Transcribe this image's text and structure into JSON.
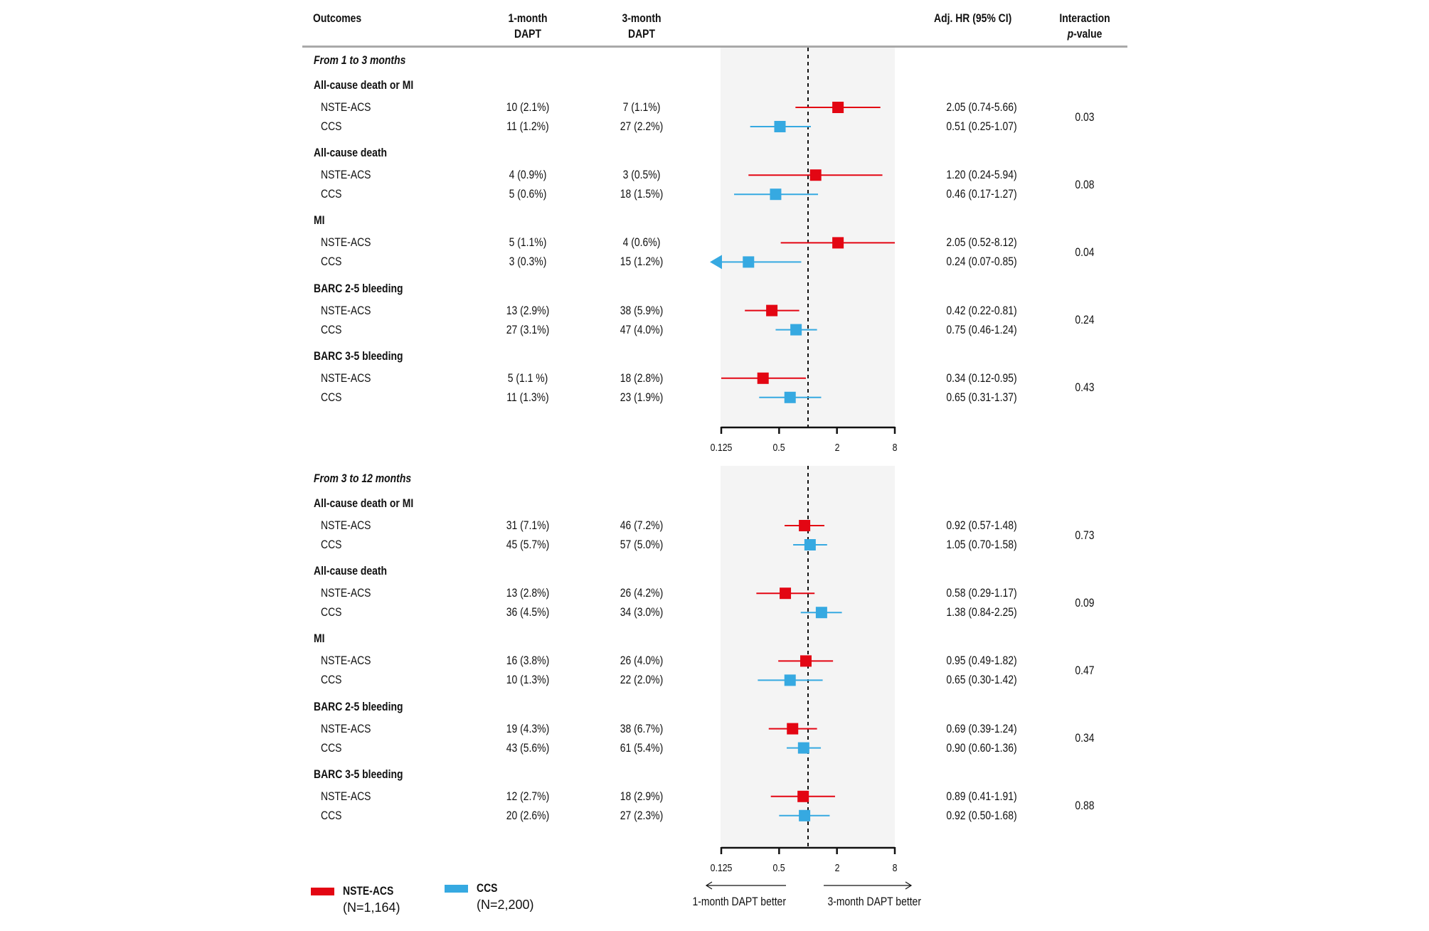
{
  "headers": {
    "outcomes": "Outcomes",
    "col1_line1": "1-month",
    "col1_line2": "DAPT",
    "col2_line1": "3-month",
    "col2_line2": "DAPT",
    "hr": "Adj. HR (95% CI)",
    "p_line1": "Interaction",
    "p_italic": "p",
    "p_rest": "-value"
  },
  "legend": {
    "nste_label": "NSTE-ACS",
    "nste_n": "(N=1,164)",
    "ccs_label": "CCS",
    "ccs_n": "(N=2,200)"
  },
  "colors": {
    "nste": "#E30613",
    "ccs": "#36A9E1",
    "band": "#f4f4f4"
  },
  "axis": {
    "ticks": [
      "0.125",
      "0.5",
      "2",
      "8"
    ],
    "left_caption": "1-month DAPT better",
    "right_caption": "3-month DAPT better"
  },
  "chart_data": {
    "type": "forest",
    "xscale": "log2",
    "xlim": [
      0.125,
      8
    ],
    "reference_line": 1,
    "xticks": [
      0.125,
      0.5,
      2,
      8
    ],
    "series": [
      {
        "name": "NSTE-ACS",
        "n": "1,164",
        "color": "#E30613"
      },
      {
        "name": "CCS",
        "n": "2,200",
        "color": "#36A9E1"
      }
    ],
    "sections": [
      {
        "title": "From 1 to 3 months",
        "groups": [
          {
            "outcome": "All-cause death or MI",
            "p": "0.03",
            "rows": [
              {
                "subgroup": "NSTE-ACS",
                "m1": "10 (2.1%)",
                "m3": "7 (1.1%)",
                "hr": 2.05,
                "lo": 0.74,
                "hi": 5.66,
                "label": "2.05 (0.74-5.66)"
              },
              {
                "subgroup": "CCS",
                "m1": "11 (1.2%)",
                "m3": "27 (2.2%)",
                "hr": 0.51,
                "lo": 0.25,
                "hi": 1.07,
                "label": "0.51 (0.25-1.07)"
              }
            ]
          },
          {
            "outcome": "All-cause death",
            "p": "0.08",
            "rows": [
              {
                "subgroup": "NSTE-ACS",
                "m1": "4 (0.9%)",
                "m3": "3 (0.5%)",
                "hr": 1.2,
                "lo": 0.24,
                "hi": 5.94,
                "label": "1.20 (0.24-5.94)"
              },
              {
                "subgroup": "CCS",
                "m1": "5 (0.6%)",
                "m3": "18 (1.5%)",
                "hr": 0.46,
                "lo": 0.17,
                "hi": 1.27,
                "label": "0.46 (0.17-1.27)"
              }
            ]
          },
          {
            "outcome": "MI",
            "p": "0.04",
            "rows": [
              {
                "subgroup": "NSTE-ACS",
                "m1": "5 (1.1%)",
                "m3": "4 (0.6%)",
                "hr": 2.05,
                "lo": 0.52,
                "hi": 8.12,
                "label": "2.05 (0.52-8.12)"
              },
              {
                "subgroup": "CCS",
                "m1": "3 (0.3%)",
                "m3": "15 (1.2%)",
                "hr": 0.24,
                "lo": 0.07,
                "hi": 0.85,
                "label": "0.24 (0.07-0.85)",
                "truncated_left": true
              }
            ]
          },
          {
            "outcome": "BARC 2-5 bleeding",
            "p": "0.24",
            "rows": [
              {
                "subgroup": "NSTE-ACS",
                "m1": "13 (2.9%)",
                "m3": "38 (5.9%)",
                "hr": 0.42,
                "lo": 0.22,
                "hi": 0.81,
                "label": "0.42 (0.22-0.81)"
              },
              {
                "subgroup": "CCS",
                "m1": "27 (3.1%)",
                "m3": "47 (4.0%)",
                "hr": 0.75,
                "lo": 0.46,
                "hi": 1.24,
                "label": "0.75 (0.46-1.24)"
              }
            ]
          },
          {
            "outcome": "BARC 3-5 bleeding",
            "p": "0.43",
            "rows": [
              {
                "subgroup": "NSTE-ACS",
                "m1": "5 (1.1 %)",
                "m3": "18 (2.8%)",
                "hr": 0.34,
                "lo": 0.12,
                "hi": 0.95,
                "label": "0.34 (0.12-0.95)"
              },
              {
                "subgroup": "CCS",
                "m1": "11 (1.3%)",
                "m3": "23 (1.9%)",
                "hr": 0.65,
                "lo": 0.31,
                "hi": 1.37,
                "label": "0.65 (0.31-1.37)"
              }
            ]
          }
        ]
      },
      {
        "title": "From 3 to 12 months",
        "groups": [
          {
            "outcome": "All-cause death or MI",
            "p": "0.73",
            "rows": [
              {
                "subgroup": "NSTE-ACS",
                "m1": "31 (7.1%)",
                "m3": "46 (7.2%)",
                "hr": 0.92,
                "lo": 0.57,
                "hi": 1.48,
                "label": "0.92 (0.57-1.48)"
              },
              {
                "subgroup": "CCS",
                "m1": "45 (5.7%)",
                "m3": "57 (5.0%)",
                "hr": 1.05,
                "lo": 0.7,
                "hi": 1.58,
                "label": "1.05 (0.70-1.58)"
              }
            ]
          },
          {
            "outcome": "All-cause death",
            "p": "0.09",
            "rows": [
              {
                "subgroup": "NSTE-ACS",
                "m1": "13 (2.8%)",
                "m3": "26 (4.2%)",
                "hr": 0.58,
                "lo": 0.29,
                "hi": 1.17,
                "label": "0.58 (0.29-1.17)"
              },
              {
                "subgroup": "CCS",
                "m1": "36 (4.5%)",
                "m3": "34 (3.0%)",
                "hr": 1.38,
                "lo": 0.84,
                "hi": 2.25,
                "label": "1.38 (0.84-2.25)"
              }
            ]
          },
          {
            "outcome": "MI",
            "p": "0.47",
            "rows": [
              {
                "subgroup": "NSTE-ACS",
                "m1": "16 (3.8%)",
                "m3": "26 (4.0%)",
                "hr": 0.95,
                "lo": 0.49,
                "hi": 1.82,
                "label": "0.95 (0.49-1.82)"
              },
              {
                "subgroup": "CCS",
                "m1": "10 (1.3%)",
                "m3": "22 (2.0%)",
                "hr": 0.65,
                "lo": 0.3,
                "hi": 1.42,
                "label": "0.65 (0.30-1.42)"
              }
            ]
          },
          {
            "outcome": "BARC 2-5 bleeding",
            "p": "0.34",
            "rows": [
              {
                "subgroup": "NSTE-ACS",
                "m1": "19 (4.3%)",
                "m3": "38 (6.7%)",
                "hr": 0.69,
                "lo": 0.39,
                "hi": 1.24,
                "label": "0.69 (0.39-1.24)"
              },
              {
                "subgroup": "CCS",
                "m1": "43 (5.6%)",
                "m3": "61 (5.4%)",
                "hr": 0.9,
                "lo": 0.6,
                "hi": 1.36,
                "label": "0.90 (0.60-1.36)"
              }
            ]
          },
          {
            "outcome": "BARC 3-5 bleeding",
            "p": "0.88",
            "rows": [
              {
                "subgroup": "NSTE-ACS",
                "m1": "12 (2.7%)",
                "m3": "18 (2.9%)",
                "hr": 0.89,
                "lo": 0.41,
                "hi": 1.91,
                "label": "0.89 (0.41-1.91)"
              },
              {
                "subgroup": "CCS",
                "m1": "20 (2.6%)",
                "m3": "27 (2.3%)",
                "hr": 0.92,
                "lo": 0.5,
                "hi": 1.68,
                "label": "0.92 (0.50-1.68)"
              }
            ]
          }
        ]
      }
    ]
  }
}
